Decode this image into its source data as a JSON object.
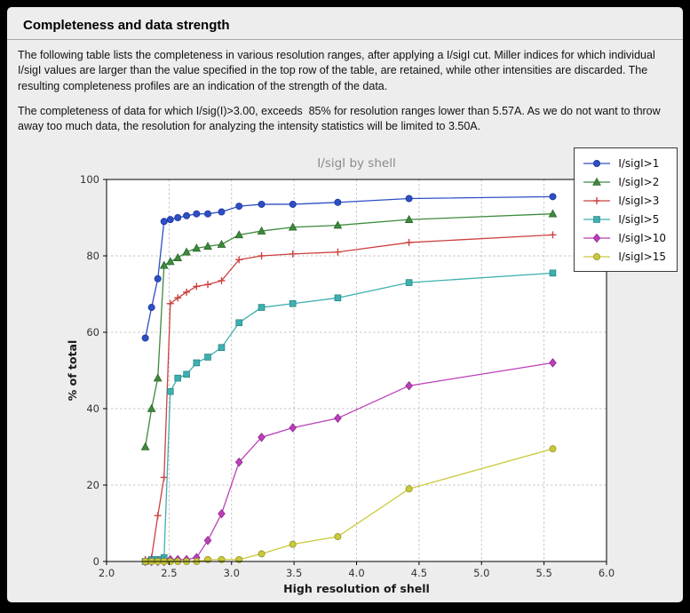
{
  "page": {
    "title": "Completeness and data strength",
    "paragraph1": "The following table lists the completeness in various resolution ranges, after applying a I/sigI cut. Miller indices for which individual I/sigI values are larger than the value specified in the top row of the table, are retained, while other intensities are discarded. The resulting completeness profiles are an indication of the strength of the data.",
    "paragraph2": "The completeness of data for which I/sig(I)>3.00, exceeds  85% for resolution ranges lower than 5.57A. As we do not want to throw away too much data, the resolution for analyzing the intensity statistics will be limited to 3.50A."
  },
  "chart_data": {
    "type": "line",
    "title": "I/sigI by shell",
    "xlabel": "High resolution of shell",
    "ylabel": "% of total",
    "xlim": [
      2.0,
      6.0
    ],
    "ylim": [
      0,
      100
    ],
    "xticks": [
      "2.0",
      "2.5",
      "3.0",
      "3.5",
      "4.0",
      "4.5",
      "5.0",
      "5.5",
      "6.0"
    ],
    "yticks": [
      "0",
      "20",
      "40",
      "60",
      "80",
      "100"
    ],
    "grid": true,
    "grid_style": "dashed",
    "legend_position": "top-right",
    "plot_background": "#ffffff",
    "figure_background": "#ededed",
    "x": [
      2.31,
      2.36,
      2.41,
      2.46,
      2.51,
      2.57,
      2.64,
      2.72,
      2.81,
      2.92,
      3.06,
      3.24,
      3.49,
      3.85,
      4.42,
      5.57
    ],
    "series": [
      {
        "name": "I/sigI>1",
        "color": "#2e4fc4",
        "edge": "#1c369a",
        "marker": "circle",
        "values": [
          58.5,
          66.5,
          74,
          89,
          89.5,
          90,
          90.5,
          91,
          91,
          91.5,
          93,
          93.5,
          93.5,
          94,
          95,
          95.5
        ]
      },
      {
        "name": "I/sigI>2",
        "color": "#3d8a3d",
        "edge": "#2a662a",
        "marker": "triangle-up",
        "values": [
          30,
          40,
          48,
          77.5,
          78.5,
          79.5,
          81,
          82,
          82.5,
          83,
          85.5,
          86.5,
          87.5,
          88,
          89.5,
          91
        ]
      },
      {
        "name": "I/sigI>3",
        "color": "#cc4140",
        "edge": "#a03030",
        "marker": "plus",
        "values": [
          0.5,
          1,
          12,
          22,
          67.5,
          69,
          70.5,
          72,
          72.5,
          73.5,
          79,
          80,
          80.5,
          81,
          83.5,
          85.5
        ]
      },
      {
        "name": "I/sigI>5",
        "color": "#3fb0b0",
        "edge": "#2a8585",
        "marker": "square",
        "values": [
          0,
          0.5,
          0.5,
          1,
          44.5,
          48,
          49,
          52,
          53.5,
          56,
          62.5,
          66.5,
          67.5,
          69,
          73,
          75.5
        ]
      },
      {
        "name": "I/sigI>10",
        "color": "#bb3fbb",
        "edge": "#8a2a8a",
        "marker": "diamond",
        "values": [
          0,
          0,
          0,
          0,
          0.5,
          0.5,
          0.5,
          1,
          5.5,
          12.5,
          26,
          32.5,
          35,
          37.5,
          46,
          52
        ]
      },
      {
        "name": "I/sigI>15",
        "color": "#c9c93a",
        "edge": "#96962a",
        "marker": "circle",
        "values": [
          0,
          0,
          0,
          0,
          0,
          0,
          0,
          0,
          0.5,
          0.5,
          0.5,
          2,
          4.5,
          6.5,
          19,
          29.5
        ]
      }
    ]
  }
}
